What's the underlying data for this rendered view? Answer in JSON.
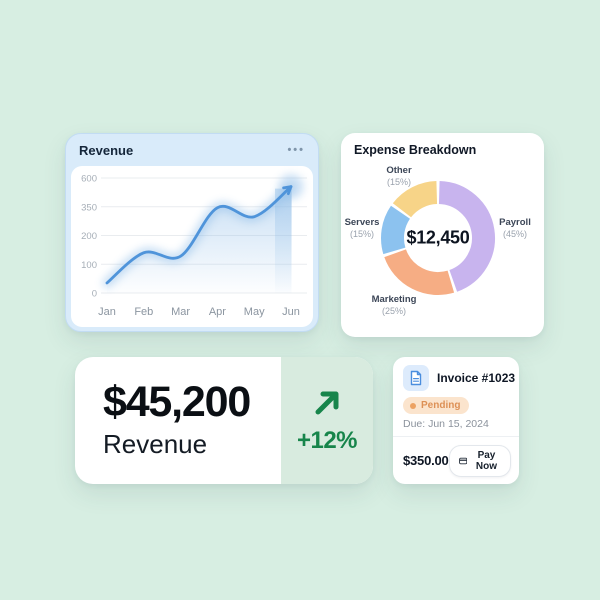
{
  "canvas": {
    "background": "#d7eee2"
  },
  "revenue_card": {
    "title": "Revenue",
    "menu": "•••"
  },
  "expense_card": {
    "title": "Expense Breakdown"
  },
  "stat_card": {
    "value": "$45,200",
    "label": "Revenue",
    "delta": "+12%",
    "accent_color": "#17854b",
    "panel_color": "#d8ebdf"
  },
  "invoice_card": {
    "title": "Invoice #1023",
    "status": "Pending",
    "status_colors": {
      "bg": "#fbe4cd",
      "dot": "#eca263",
      "text": "#dd9055"
    },
    "due": "Due: Jun 15, 2024",
    "amount": "$350.00",
    "pay_button": "Pay Now"
  },
  "chart_data": [
    {
      "type": "line",
      "title": "Revenue",
      "x": [
        "Jan",
        "Feb",
        "Mar",
        "Apr",
        "May",
        "Jun"
      ],
      "values": [
        35,
        140,
        128,
        345,
        298,
        525
      ],
      "y_ticks": [
        0,
        100,
        200,
        350,
        600
      ],
      "ylim": [
        0,
        600
      ],
      "grid": true,
      "legend_position": "none",
      "line_color": "#4f94da",
      "area_color": "#8fbde8",
      "annotation": "smoothed line with soft glow, gradient area fill, arrowhead pointing up-right at Jun"
    },
    {
      "type": "pie",
      "donut": true,
      "title": "Expense Breakdown",
      "labels": [
        "Payroll",
        "Marketing",
        "Servers",
        "Other"
      ],
      "pct_labels": [
        "(45%)",
        "(25%)",
        "(15%)",
        "(15%)"
      ],
      "values": [
        45,
        25,
        15,
        15
      ],
      "colors": [
        "#c8b4ee",
        "#f6ad84",
        "#8cc2ef",
        "#f7d488"
      ],
      "center_label": "$12,450",
      "start_angle_deg": 0,
      "direction": "clockwise",
      "legend_position": "labels around donut"
    }
  ]
}
